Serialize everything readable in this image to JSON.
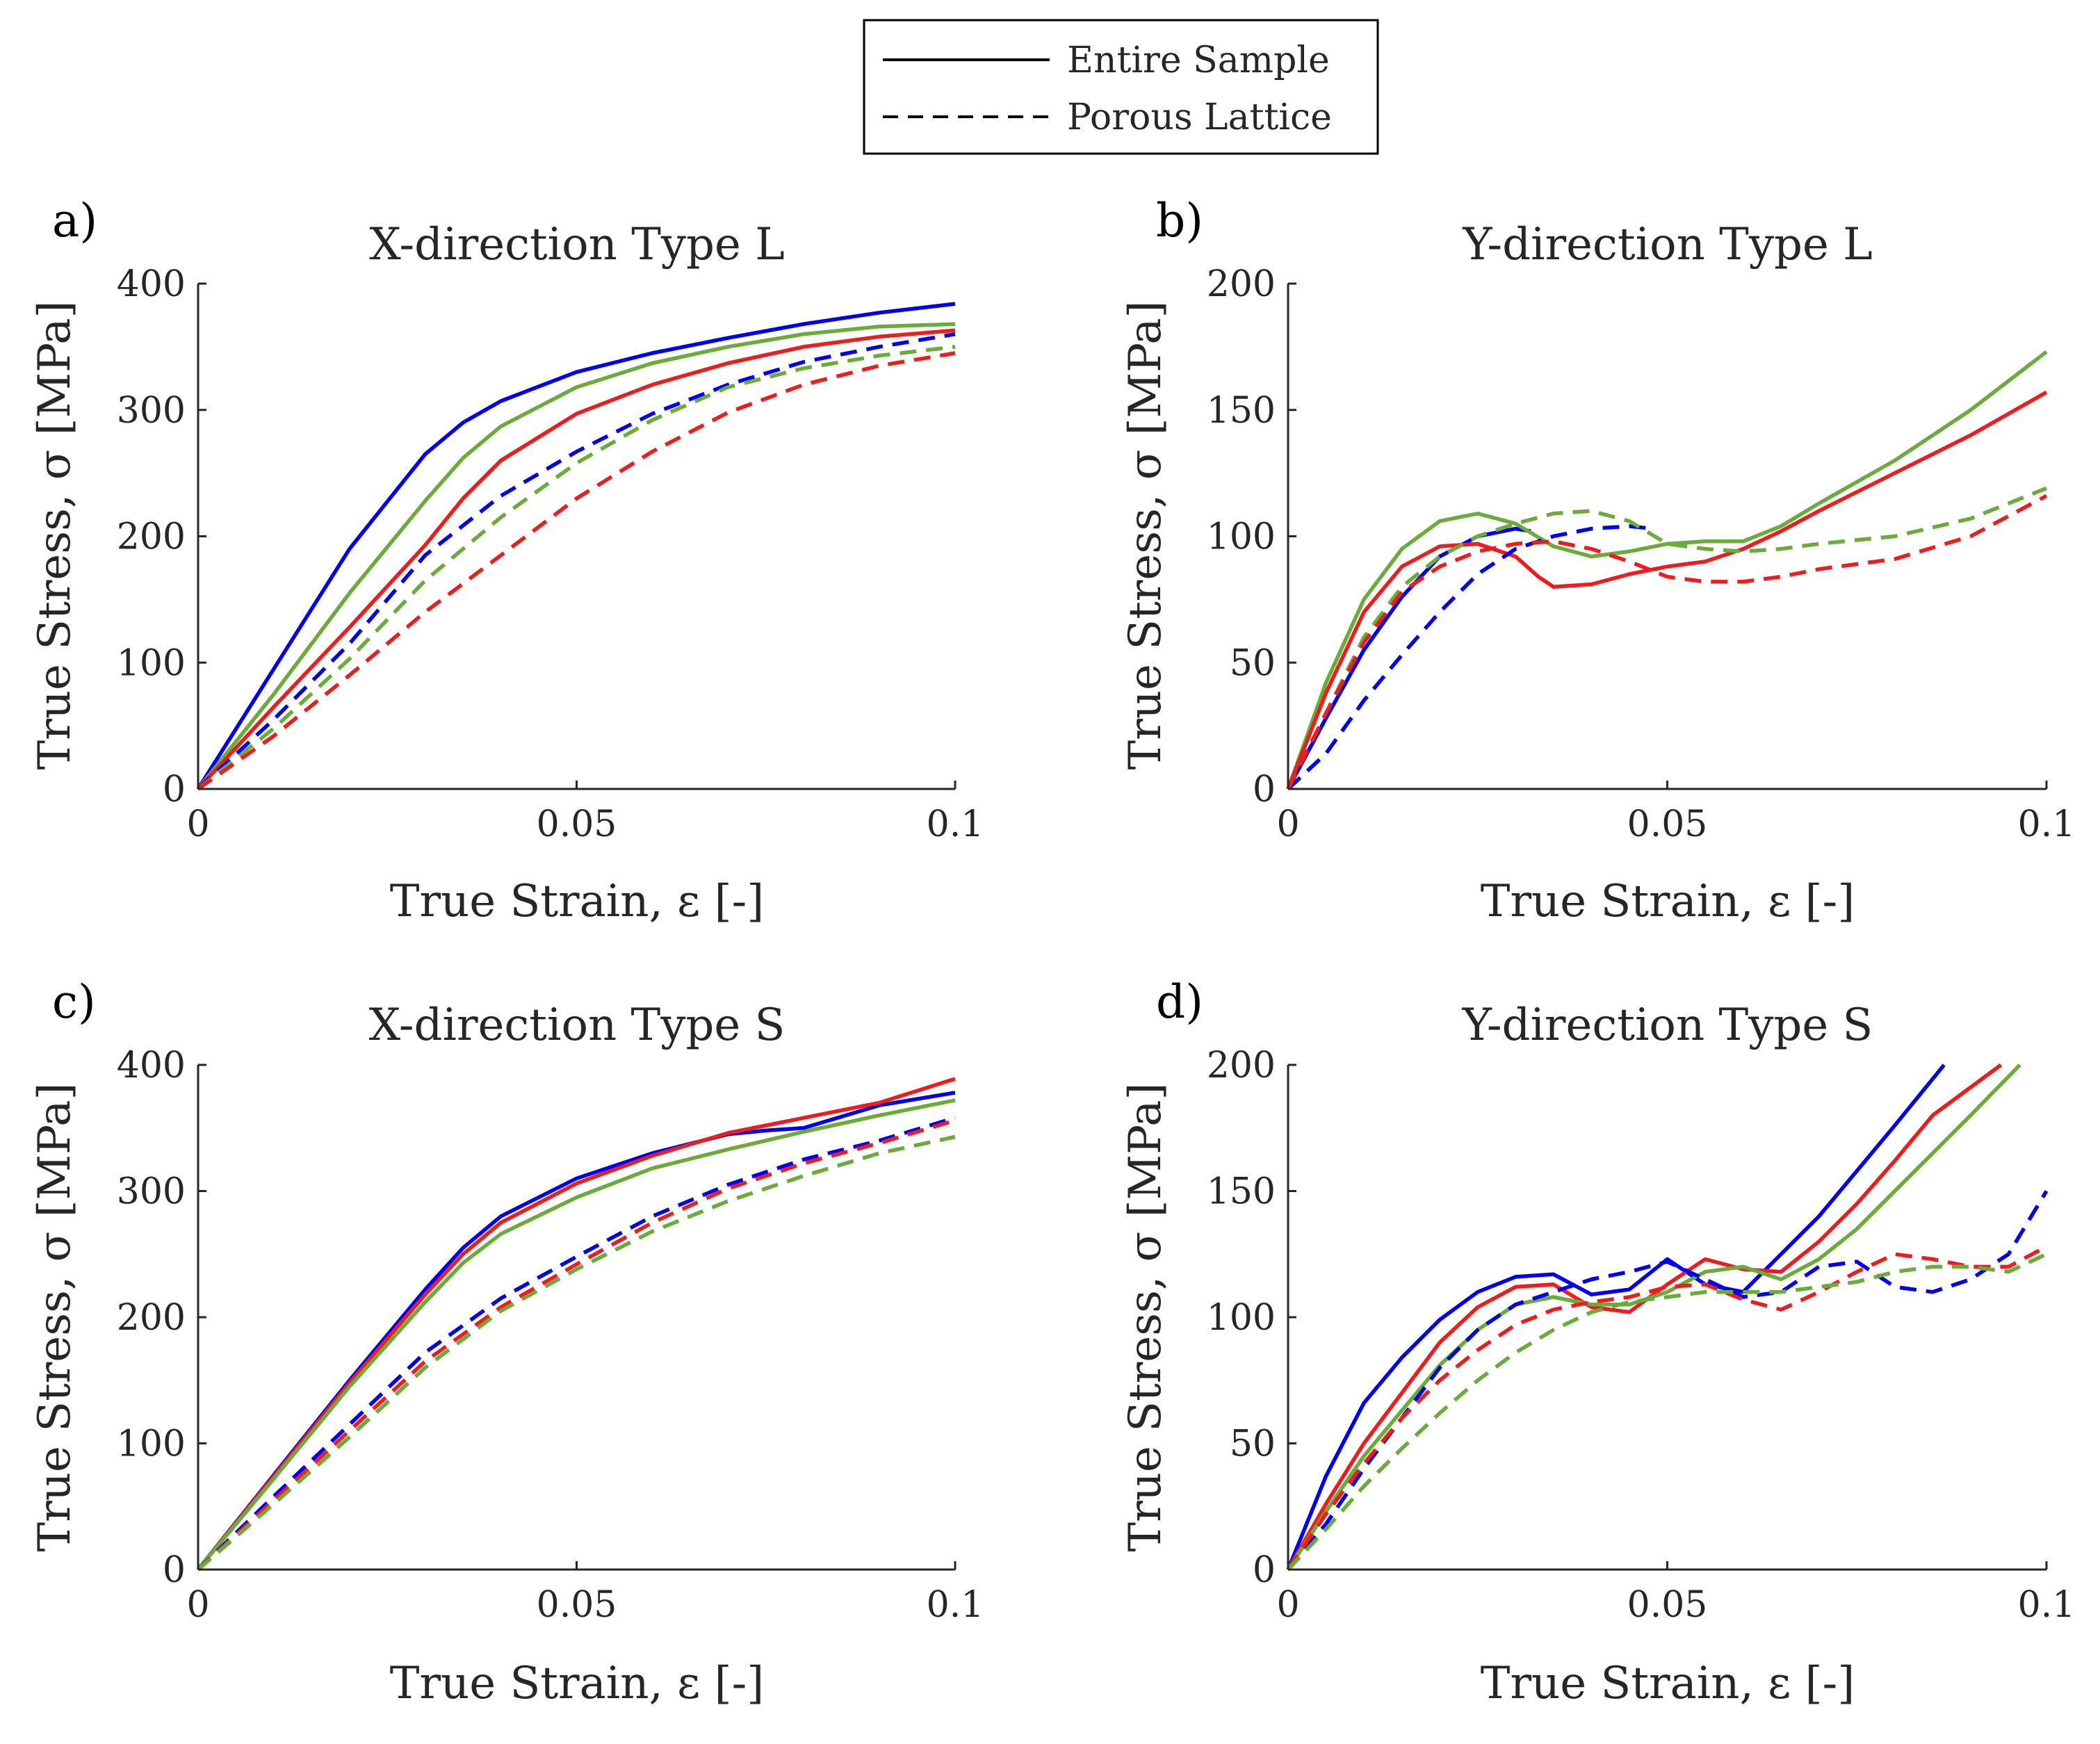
{
  "figure": {
    "legend": {
      "entries": [
        {
          "label": "Entire Sample",
          "style": "solid"
        },
        {
          "label": "Porous Lattice",
          "style": "dashed"
        }
      ]
    }
  },
  "colors": {
    "blue": "#0000ee",
    "red": "#ee1c1c",
    "green": "#6aab3a",
    "axis": "#262626"
  },
  "chart_data": [
    {
      "type": "line",
      "panel_label": "a)",
      "title": "X-direction Type L",
      "xlabel": "True Strain, ε [-]",
      "ylabel": "True Stress, σ [MPa]",
      "xlim": [
        0,
        0.1
      ],
      "ylim": [
        0,
        400
      ],
      "xticks": [
        0,
        0.05,
        0.1
      ],
      "xtick_labels": [
        "0",
        "0.05",
        "0.1"
      ],
      "yticks": [
        0,
        100,
        200,
        300,
        400
      ],
      "ytick_labels": [
        "0",
        "100",
        "200",
        "300",
        "400"
      ],
      "series": [
        {
          "name": "blue-entire",
          "color": "#0000ee",
          "dash": false,
          "x": [
            0,
            0.01,
            0.02,
            0.03,
            0.035,
            0.04,
            0.05,
            0.06,
            0.07,
            0.08,
            0.09,
            0.1
          ],
          "y": [
            0,
            95,
            190,
            265,
            290,
            307,
            330,
            345,
            357,
            368,
            377,
            384
          ]
        },
        {
          "name": "green-entire",
          "color": "#6aab3a",
          "dash": false,
          "x": [
            0,
            0.01,
            0.02,
            0.03,
            0.035,
            0.04,
            0.05,
            0.06,
            0.07,
            0.08,
            0.09,
            0.1
          ],
          "y": [
            0,
            75,
            155,
            228,
            262,
            287,
            318,
            337,
            350,
            360,
            366,
            368
          ]
        },
        {
          "name": "red-entire",
          "color": "#ee1c1c",
          "dash": false,
          "x": [
            0,
            0.01,
            0.02,
            0.03,
            0.035,
            0.04,
            0.05,
            0.06,
            0.07,
            0.08,
            0.09,
            0.1
          ],
          "y": [
            0,
            65,
            128,
            193,
            230,
            260,
            297,
            320,
            337,
            350,
            358,
            363
          ]
        },
        {
          "name": "blue-lattice",
          "color": "#0000ee",
          "dash": true,
          "x": [
            0,
            0.01,
            0.02,
            0.03,
            0.04,
            0.05,
            0.06,
            0.07,
            0.08,
            0.09,
            0.1
          ],
          "y": [
            0,
            55,
            115,
            185,
            232,
            267,
            297,
            320,
            338,
            350,
            360
          ]
        },
        {
          "name": "green-lattice",
          "color": "#6aab3a",
          "dash": true,
          "x": [
            0,
            0.01,
            0.02,
            0.03,
            0.04,
            0.05,
            0.06,
            0.07,
            0.08,
            0.09,
            0.1
          ],
          "y": [
            0,
            48,
            103,
            165,
            215,
            258,
            292,
            318,
            333,
            343,
            350
          ]
        },
        {
          "name": "red-lattice",
          "color": "#ee1c1c",
          "dash": true,
          "x": [
            0,
            0.01,
            0.02,
            0.03,
            0.04,
            0.05,
            0.06,
            0.07,
            0.08,
            0.09,
            0.1
          ],
          "y": [
            0,
            42,
            90,
            140,
            185,
            230,
            267,
            298,
            320,
            335,
            345
          ]
        }
      ]
    },
    {
      "type": "line",
      "panel_label": "b)",
      "title": "Y-direction Type L",
      "xlabel": "True Strain, ε [-]",
      "ylabel": "True Stress, σ [MPa]",
      "xlim": [
        0,
        0.1
      ],
      "ylim": [
        0,
        200
      ],
      "xticks": [
        0,
        0.05,
        0.1
      ],
      "xtick_labels": [
        "0",
        "0.05",
        "0.1"
      ],
      "yticks": [
        0,
        50,
        100,
        150,
        200
      ],
      "ytick_labels": [
        "0",
        "50",
        "100",
        "150",
        "200"
      ],
      "series": [
        {
          "name": "blue-entire",
          "color": "#0000ee",
          "dash": false,
          "x": [
            0,
            0.005,
            0.01,
            0.015,
            0.02,
            0.025,
            0.03,
            0.032
          ],
          "y": [
            0,
            28,
            55,
            76,
            92,
            100,
            103,
            102
          ]
        },
        {
          "name": "green-entire",
          "color": "#6aab3a",
          "dash": false,
          "x": [
            0,
            0.005,
            0.01,
            0.015,
            0.02,
            0.025,
            0.03,
            0.035,
            0.04,
            0.045,
            0.05,
            0.055,
            0.06,
            0.065,
            0.07,
            0.08,
            0.09,
            0.1
          ],
          "y": [
            0,
            42,
            75,
            95,
            106,
            109,
            105,
            96,
            92,
            94,
            97,
            98,
            98,
            104,
            113,
            130,
            150,
            173
          ]
        },
        {
          "name": "red-entire",
          "color": "#ee1c1c",
          "dash": false,
          "x": [
            0,
            0.005,
            0.01,
            0.015,
            0.02,
            0.025,
            0.03,
            0.033,
            0.035,
            0.04,
            0.045,
            0.05,
            0.055,
            0.06,
            0.065,
            0.07,
            0.08,
            0.09,
            0.1
          ],
          "y": [
            0,
            38,
            70,
            88,
            96,
            97,
            92,
            84,
            80,
            81,
            85,
            88,
            90,
            95,
            102,
            110,
            125,
            140,
            157
          ]
        },
        {
          "name": "blue-lattice",
          "color": "#0000ee",
          "dash": true,
          "x": [
            0,
            0.005,
            0.01,
            0.015,
            0.02,
            0.025,
            0.03,
            0.035,
            0.04,
            0.045,
            0.048
          ],
          "y": [
            0,
            14,
            35,
            53,
            70,
            85,
            95,
            100,
            103,
            104,
            103
          ]
        },
        {
          "name": "green-lattice",
          "color": "#6aab3a",
          "dash": true,
          "x": [
            0,
            0.005,
            0.01,
            0.015,
            0.02,
            0.025,
            0.03,
            0.035,
            0.04,
            0.045,
            0.05,
            0.055,
            0.06,
            0.065,
            0.07,
            0.08,
            0.09,
            0.1
          ],
          "y": [
            0,
            30,
            60,
            80,
            92,
            100,
            105,
            109,
            110,
            106,
            97,
            95,
            94,
            95,
            97,
            100,
            107,
            119
          ]
        },
        {
          "name": "red-lattice",
          "color": "#ee1c1c",
          "dash": true,
          "x": [
            0,
            0.005,
            0.01,
            0.015,
            0.02,
            0.025,
            0.03,
            0.035,
            0.04,
            0.045,
            0.05,
            0.055,
            0.06,
            0.065,
            0.07,
            0.08,
            0.09,
            0.1
          ],
          "y": [
            0,
            30,
            58,
            78,
            88,
            94,
            97,
            98,
            95,
            90,
            84,
            82,
            82,
            84,
            87,
            91,
            100,
            116
          ]
        }
      ]
    },
    {
      "type": "line",
      "panel_label": "c)",
      "title": "X-direction Type S",
      "xlabel": "True Strain, ε [-]",
      "ylabel": "True Stress, σ [MPa]",
      "xlim": [
        0,
        0.1
      ],
      "ylim": [
        0,
        400
      ],
      "xticks": [
        0,
        0.05,
        0.1
      ],
      "xtick_labels": [
        "0",
        "0.05",
        "0.1"
      ],
      "yticks": [
        0,
        100,
        200,
        300,
        400
      ],
      "ytick_labels": [
        "0",
        "100",
        "200",
        "300",
        "400"
      ],
      "series": [
        {
          "name": "blue-entire",
          "color": "#0000ee",
          "dash": false,
          "x": [
            0,
            0.01,
            0.02,
            0.03,
            0.035,
            0.04,
            0.05,
            0.06,
            0.07,
            0.075,
            0.08,
            0.09,
            0.1
          ],
          "y": [
            0,
            75,
            150,
            222,
            255,
            280,
            310,
            330,
            345,
            348,
            350,
            368,
            378
          ]
        },
        {
          "name": "red-entire",
          "color": "#ee1c1c",
          "dash": false,
          "x": [
            0,
            0.01,
            0.02,
            0.03,
            0.035,
            0.04,
            0.05,
            0.06,
            0.07,
            0.08,
            0.09,
            0.1
          ],
          "y": [
            0,
            74,
            148,
            218,
            250,
            275,
            306,
            328,
            346,
            358,
            370,
            389
          ]
        },
        {
          "name": "green-entire",
          "color": "#6aab3a",
          "dash": false,
          "x": [
            0,
            0.01,
            0.02,
            0.03,
            0.035,
            0.04,
            0.05,
            0.06,
            0.07,
            0.08,
            0.09,
            0.1
          ],
          "y": [
            0,
            72,
            145,
            212,
            243,
            266,
            295,
            318,
            333,
            347,
            360,
            372
          ]
        },
        {
          "name": "blue-lattice",
          "color": "#0000ee",
          "dash": true,
          "x": [
            0,
            0.01,
            0.02,
            0.03,
            0.04,
            0.05,
            0.06,
            0.07,
            0.08,
            0.09,
            0.1
          ],
          "y": [
            0,
            58,
            115,
            172,
            215,
            248,
            280,
            305,
            325,
            340,
            358
          ]
        },
        {
          "name": "red-lattice",
          "color": "#ee1c1c",
          "dash": true,
          "x": [
            0,
            0.01,
            0.02,
            0.03,
            0.04,
            0.05,
            0.06,
            0.07,
            0.08,
            0.09,
            0.1
          ],
          "y": [
            0,
            55,
            110,
            165,
            208,
            242,
            275,
            302,
            322,
            338,
            356
          ]
        },
        {
          "name": "green-lattice",
          "color": "#6aab3a",
          "dash": true,
          "x": [
            0,
            0.01,
            0.02,
            0.03,
            0.04,
            0.05,
            0.06,
            0.07,
            0.08,
            0.09,
            0.1
          ],
          "y": [
            0,
            52,
            105,
            160,
            205,
            238,
            268,
            292,
            312,
            330,
            343
          ]
        }
      ]
    },
    {
      "type": "line",
      "panel_label": "d)",
      "title": "Y-direction Type S",
      "xlabel": "True Strain, ε [-]",
      "ylabel": "True Stress, σ [MPa]",
      "xlim": [
        0,
        0.1
      ],
      "ylim": [
        0,
        200
      ],
      "xticks": [
        0,
        0.05,
        0.1
      ],
      "xtick_labels": [
        "0",
        "0.05",
        "0.1"
      ],
      "yticks": [
        0,
        50,
        100,
        150,
        200
      ],
      "ytick_labels": [
        "0",
        "50",
        "100",
        "150",
        "200"
      ],
      "series": [
        {
          "name": "blue-entire",
          "color": "#0000ee",
          "dash": false,
          "x": [
            0,
            0.005,
            0.01,
            0.015,
            0.02,
            0.025,
            0.03,
            0.035,
            0.04,
            0.045,
            0.05,
            0.055,
            0.06,
            0.065,
            0.07,
            0.075,
            0.08,
            0.0865
          ],
          "y": [
            0,
            37,
            66,
            84,
            99,
            110,
            116,
            117,
            109,
            111,
            123,
            113,
            110,
            125,
            140,
            158,
            176,
            200
          ]
        },
        {
          "name": "red-entire",
          "color": "#ee1c1c",
          "dash": false,
          "x": [
            0,
            0.005,
            0.01,
            0.015,
            0.02,
            0.025,
            0.03,
            0.035,
            0.04,
            0.045,
            0.05,
            0.055,
            0.06,
            0.065,
            0.07,
            0.075,
            0.08,
            0.085,
            0.094
          ],
          "y": [
            0,
            26,
            50,
            70,
            90,
            104,
            112,
            113,
            104,
            102,
            113,
            123,
            119,
            118,
            130,
            145,
            162,
            180,
            200
          ]
        },
        {
          "name": "green-entire",
          "color": "#6aab3a",
          "dash": false,
          "x": [
            0,
            0.005,
            0.01,
            0.015,
            0.02,
            0.025,
            0.03,
            0.035,
            0.04,
            0.045,
            0.05,
            0.055,
            0.06,
            0.065,
            0.07,
            0.075,
            0.08,
            0.085,
            0.09,
            0.0965
          ],
          "y": [
            0,
            23,
            45,
            63,
            81,
            95,
            105,
            108,
            105,
            105,
            110,
            118,
            120,
            115,
            123,
            135,
            150,
            165,
            180,
            200
          ]
        },
        {
          "name": "blue-lattice",
          "color": "#0000ee",
          "dash": true,
          "x": [
            0,
            0.005,
            0.01,
            0.015,
            0.02,
            0.025,
            0.03,
            0.035,
            0.04,
            0.045,
            0.05,
            0.055,
            0.06,
            0.065,
            0.07,
            0.075,
            0.08,
            0.085,
            0.09,
            0.095,
            0.1
          ],
          "y": [
            0,
            18,
            40,
            60,
            80,
            95,
            105,
            110,
            115,
            118,
            122,
            115,
            108,
            110,
            120,
            122,
            112,
            110,
            115,
            125,
            150
          ]
        },
        {
          "name": "red-lattice",
          "color": "#ee1c1c",
          "dash": true,
          "x": [
            0,
            0.005,
            0.01,
            0.015,
            0.02,
            0.025,
            0.03,
            0.035,
            0.04,
            0.045,
            0.05,
            0.055,
            0.06,
            0.065,
            0.07,
            0.075,
            0.08,
            0.085,
            0.09,
            0.095,
            0.1
          ],
          "y": [
            0,
            22,
            42,
            60,
            75,
            87,
            97,
            103,
            106,
            108,
            112,
            113,
            107,
            103,
            110,
            118,
            125,
            123,
            120,
            120,
            128
          ]
        },
        {
          "name": "green-lattice",
          "color": "#6aab3a",
          "dash": true,
          "x": [
            0,
            0.005,
            0.01,
            0.015,
            0.02,
            0.025,
            0.03,
            0.035,
            0.04,
            0.045,
            0.05,
            0.055,
            0.06,
            0.065,
            0.07,
            0.075,
            0.08,
            0.085,
            0.09,
            0.095,
            0.1
          ],
          "y": [
            0,
            16,
            33,
            48,
            62,
            75,
            86,
            95,
            102,
            106,
            108,
            110,
            110,
            110,
            112,
            114,
            118,
            120,
            120,
            118,
            125
          ]
        }
      ]
    }
  ]
}
